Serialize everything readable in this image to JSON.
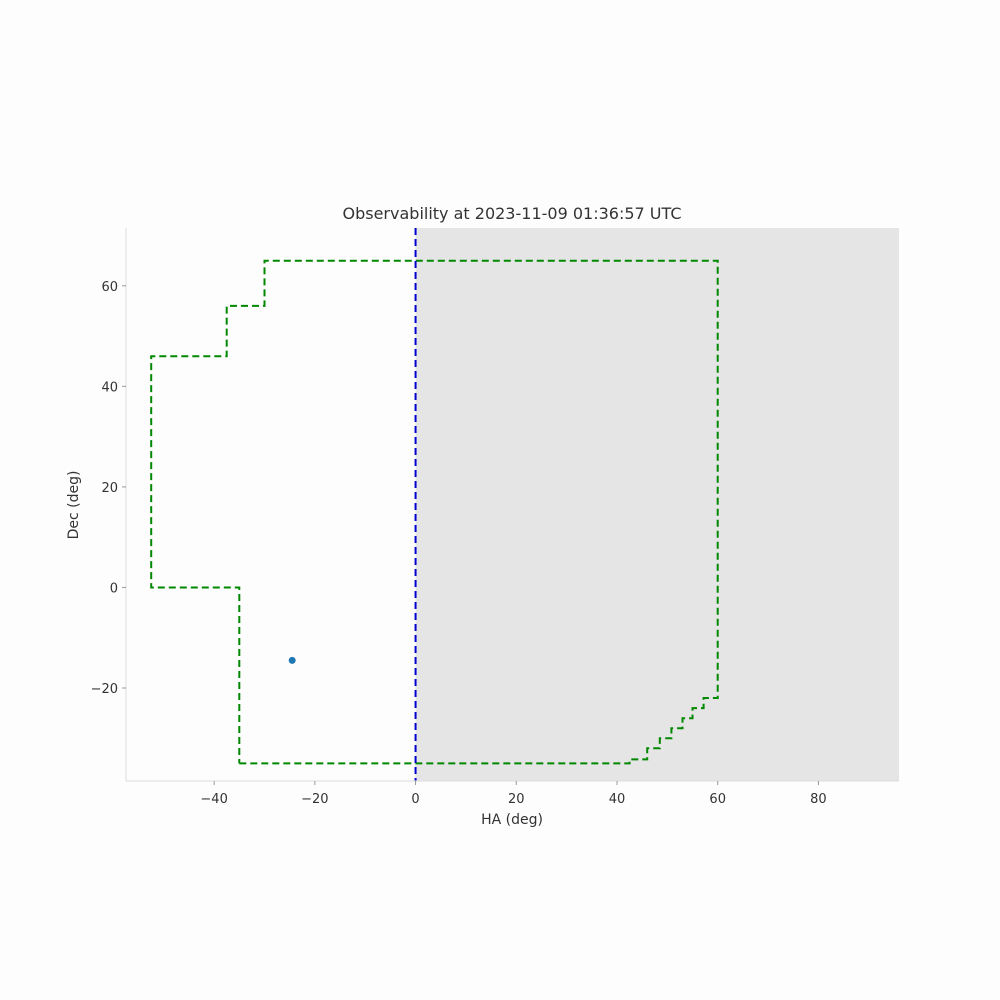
{
  "chart_data": {
    "type": "line",
    "title": "Observability at 2023-11-09 01:36:57 UTC",
    "xlabel": "HA (deg)",
    "ylabel": "Dec (deg)",
    "xlim": [
      -57.5,
      96
    ],
    "ylim": [
      -38.5,
      71.5
    ],
    "xticks": [
      -40,
      -20,
      0,
      20,
      40,
      60,
      80
    ],
    "xtick_labels": [
      "−40",
      "−20",
      "0",
      "20",
      "40",
      "60",
      "80"
    ],
    "yticks": [
      -20,
      0,
      20,
      40,
      60
    ],
    "ytick_labels": [
      "−20",
      "0",
      "20",
      "40",
      "60"
    ],
    "grid": false,
    "shaded_region": {
      "x_from": 0,
      "x_to": 96,
      "color": "#e5e5e5"
    },
    "vertical_line": {
      "x": 0,
      "color": "#0000cc",
      "style": "dashed"
    },
    "series": [
      {
        "type": "line",
        "style": "dashed",
        "color": "#008800",
        "points": [
          [
            -35,
            -35
          ],
          [
            0,
            -35
          ],
          [
            42.5,
            -35
          ],
          [
            42.5,
            -34.2
          ],
          [
            46,
            -34.2
          ],
          [
            46,
            -32
          ],
          [
            48.5,
            -32
          ],
          [
            48.5,
            -30
          ],
          [
            50.8,
            -30
          ],
          [
            50.8,
            -28
          ],
          [
            53,
            -28
          ],
          [
            53,
            -26
          ],
          [
            55,
            -26
          ],
          [
            55,
            -24
          ],
          [
            57.2,
            -24
          ],
          [
            57.2,
            -22
          ],
          [
            60,
            -22
          ],
          [
            60,
            65
          ],
          [
            0,
            65
          ],
          [
            -30,
            65
          ],
          [
            -30,
            56
          ],
          [
            -37.5,
            56
          ],
          [
            -37.5,
            46
          ],
          [
            -52.5,
            46
          ],
          [
            -52.5,
            0
          ],
          [
            -35,
            0
          ],
          [
            -35,
            -35
          ]
        ]
      },
      {
        "type": "scatter",
        "color": "#1f77b4",
        "points": [
          [
            -24.5,
            -14.5
          ]
        ]
      }
    ]
  }
}
